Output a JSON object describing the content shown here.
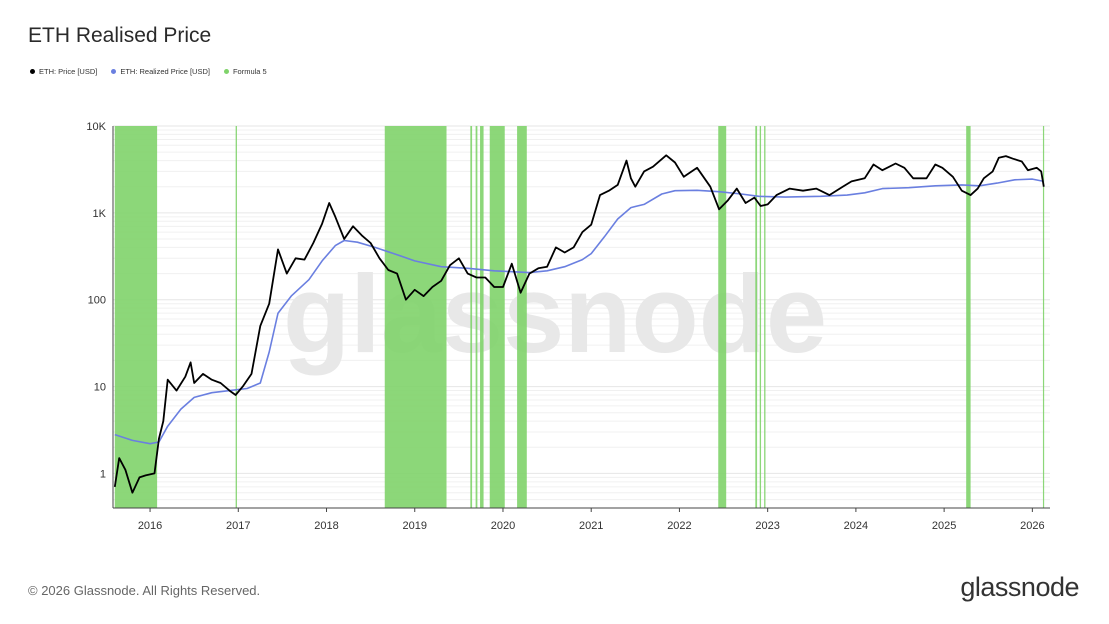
{
  "title": "ETH Realised Price",
  "legend": [
    {
      "label": "ETH: Price [USD]",
      "color": "#000000"
    },
    {
      "label": "ETH: Realized Price [USD]",
      "color": "#6a7fe0"
    },
    {
      "label": "Formula 5",
      "color": "#7fd36a"
    }
  ],
  "footer": "© 2026 Glassnode. All Rights Reserved.",
  "logo": "glassnode",
  "watermark": "glassnode",
  "chart_data": {
    "type": "line",
    "yscale": "log",
    "ylim": [
      0.4,
      10000
    ],
    "xlim": [
      2015.58,
      2026.2
    ],
    "ytick_labels": [
      "1",
      "10",
      "100",
      "1K",
      "10K"
    ],
    "ytick_values": [
      1,
      10,
      100,
      1000,
      10000
    ],
    "xtick_labels": [
      "2016",
      "2017",
      "2018",
      "2019",
      "2020",
      "2021",
      "2022",
      "2023",
      "2024",
      "2025",
      "2026"
    ],
    "xtick_values": [
      2016,
      2017,
      2018,
      2019,
      2020,
      2021,
      2022,
      2023,
      2024,
      2025,
      2026
    ],
    "grid": true,
    "series": [
      {
        "name": "ETH: Price [USD]",
        "color": "#000000",
        "points": [
          [
            2015.6,
            0.7
          ],
          [
            2015.65,
            1.5
          ],
          [
            2015.72,
            1.1
          ],
          [
            2015.8,
            0.6
          ],
          [
            2015.88,
            0.9
          ],
          [
            2015.95,
            0.95
          ],
          [
            2016.05,
            1.0
          ],
          [
            2016.1,
            2.5
          ],
          [
            2016.15,
            4.0
          ],
          [
            2016.2,
            12
          ],
          [
            2016.3,
            9
          ],
          [
            2016.4,
            13
          ],
          [
            2016.46,
            19
          ],
          [
            2016.5,
            11
          ],
          [
            2016.6,
            14
          ],
          [
            2016.7,
            12
          ],
          [
            2016.8,
            11
          ],
          [
            2016.9,
            9
          ],
          [
            2016.97,
            8
          ],
          [
            2017.05,
            10
          ],
          [
            2017.15,
            14
          ],
          [
            2017.25,
            50
          ],
          [
            2017.35,
            90
          ],
          [
            2017.45,
            380
          ],
          [
            2017.55,
            200
          ],
          [
            2017.65,
            300
          ],
          [
            2017.75,
            290
          ],
          [
            2017.85,
            450
          ],
          [
            2017.95,
            750
          ],
          [
            2018.03,
            1300
          ],
          [
            2018.1,
            900
          ],
          [
            2018.2,
            500
          ],
          [
            2018.3,
            700
          ],
          [
            2018.4,
            550
          ],
          [
            2018.5,
            450
          ],
          [
            2018.6,
            300
          ],
          [
            2018.7,
            220
          ],
          [
            2018.8,
            200
          ],
          [
            2018.9,
            100
          ],
          [
            2019.0,
            130
          ],
          [
            2019.1,
            110
          ],
          [
            2019.2,
            140
          ],
          [
            2019.3,
            165
          ],
          [
            2019.4,
            250
          ],
          [
            2019.5,
            300
          ],
          [
            2019.6,
            200
          ],
          [
            2019.7,
            180
          ],
          [
            2019.8,
            180
          ],
          [
            2019.9,
            140
          ],
          [
            2020.0,
            140
          ],
          [
            2020.1,
            260
          ],
          [
            2020.2,
            120
          ],
          [
            2020.3,
            200
          ],
          [
            2020.4,
            230
          ],
          [
            2020.5,
            240
          ],
          [
            2020.6,
            400
          ],
          [
            2020.7,
            350
          ],
          [
            2020.8,
            400
          ],
          [
            2020.9,
            600
          ],
          [
            2021.0,
            730
          ],
          [
            2021.1,
            1600
          ],
          [
            2021.2,
            1800
          ],
          [
            2021.3,
            2100
          ],
          [
            2021.4,
            4000
          ],
          [
            2021.45,
            2500
          ],
          [
            2021.5,
            2000
          ],
          [
            2021.6,
            3000
          ],
          [
            2021.7,
            3400
          ],
          [
            2021.85,
            4600
          ],
          [
            2021.95,
            3800
          ],
          [
            2022.05,
            2600
          ],
          [
            2022.2,
            3300
          ],
          [
            2022.35,
            2000
          ],
          [
            2022.45,
            1100
          ],
          [
            2022.55,
            1400
          ],
          [
            2022.65,
            1900
          ],
          [
            2022.75,
            1300
          ],
          [
            2022.85,
            1500
          ],
          [
            2022.92,
            1200
          ],
          [
            2023.0,
            1250
          ],
          [
            2023.1,
            1600
          ],
          [
            2023.25,
            1900
          ],
          [
            2023.4,
            1800
          ],
          [
            2023.55,
            1900
          ],
          [
            2023.7,
            1600
          ],
          [
            2023.85,
            2000
          ],
          [
            2023.95,
            2300
          ],
          [
            2024.1,
            2500
          ],
          [
            2024.2,
            3600
          ],
          [
            2024.3,
            3100
          ],
          [
            2024.45,
            3700
          ],
          [
            2024.55,
            3300
          ],
          [
            2024.65,
            2500
          ],
          [
            2024.8,
            2500
          ],
          [
            2024.9,
            3600
          ],
          [
            2024.98,
            3300
          ],
          [
            2025.1,
            2600
          ],
          [
            2025.2,
            1800
          ],
          [
            2025.3,
            1600
          ],
          [
            2025.38,
            1900
          ],
          [
            2025.45,
            2500
          ],
          [
            2025.55,
            3000
          ],
          [
            2025.62,
            4300
          ],
          [
            2025.7,
            4500
          ],
          [
            2025.78,
            4200
          ],
          [
            2025.88,
            3900
          ],
          [
            2025.95,
            3100
          ],
          [
            2026.05,
            3300
          ],
          [
            2026.1,
            3000
          ],
          [
            2026.13,
            2000
          ]
        ]
      },
      {
        "name": "ETH: Realized Price [USD]",
        "color": "#6a7fe0",
        "points": [
          [
            2015.6,
            2.8
          ],
          [
            2015.8,
            2.4
          ],
          [
            2016.0,
            2.2
          ],
          [
            2016.1,
            2.3
          ],
          [
            2016.2,
            3.5
          ],
          [
            2016.35,
            5.5
          ],
          [
            2016.5,
            7.5
          ],
          [
            2016.7,
            8.5
          ],
          [
            2016.9,
            9.0
          ],
          [
            2017.1,
            9.5
          ],
          [
            2017.25,
            11
          ],
          [
            2017.35,
            25
          ],
          [
            2017.45,
            70
          ],
          [
            2017.6,
            110
          ],
          [
            2017.8,
            170
          ],
          [
            2017.95,
            280
          ],
          [
            2018.1,
            420
          ],
          [
            2018.2,
            480
          ],
          [
            2018.35,
            460
          ],
          [
            2018.55,
            400
          ],
          [
            2018.8,
            330
          ],
          [
            2019.0,
            280
          ],
          [
            2019.3,
            240
          ],
          [
            2019.6,
            230
          ],
          [
            2019.9,
            215
          ],
          [
            2020.1,
            210
          ],
          [
            2020.3,
            205
          ],
          [
            2020.5,
            215
          ],
          [
            2020.7,
            240
          ],
          [
            2020.9,
            290
          ],
          [
            2021.0,
            340
          ],
          [
            2021.15,
            530
          ],
          [
            2021.3,
            850
          ],
          [
            2021.45,
            1150
          ],
          [
            2021.6,
            1250
          ],
          [
            2021.8,
            1650
          ],
          [
            2021.95,
            1800
          ],
          [
            2022.2,
            1820
          ],
          [
            2022.45,
            1750
          ],
          [
            2022.7,
            1650
          ],
          [
            2022.9,
            1550
          ],
          [
            2023.2,
            1520
          ],
          [
            2023.6,
            1550
          ],
          [
            2023.9,
            1600
          ],
          [
            2024.1,
            1700
          ],
          [
            2024.3,
            1900
          ],
          [
            2024.6,
            1950
          ],
          [
            2024.9,
            2050
          ],
          [
            2025.2,
            2100
          ],
          [
            2025.4,
            2050
          ],
          [
            2025.6,
            2200
          ],
          [
            2025.8,
            2400
          ],
          [
            2026.0,
            2450
          ],
          [
            2026.13,
            2300
          ]
        ]
      }
    ],
    "highlight_series": {
      "name": "Formula 5",
      "color": "#7fd36a",
      "ranges": [
        [
          2015.6,
          2016.08
        ],
        [
          2016.97,
          2016.985
        ],
        [
          2018.66,
          2019.36
        ],
        [
          2019.63,
          2019.65
        ],
        [
          2019.69,
          2019.71
        ],
        [
          2019.74,
          2019.78
        ],
        [
          2019.85,
          2020.02
        ],
        [
          2020.16,
          2020.27
        ],
        [
          2022.44,
          2022.53
        ],
        [
          2022.86,
          2022.88
        ],
        [
          2022.91,
          2022.925
        ],
        [
          2022.96,
          2022.975
        ],
        [
          2025.25,
          2025.3
        ],
        [
          2026.12,
          2026.13
        ]
      ]
    }
  }
}
